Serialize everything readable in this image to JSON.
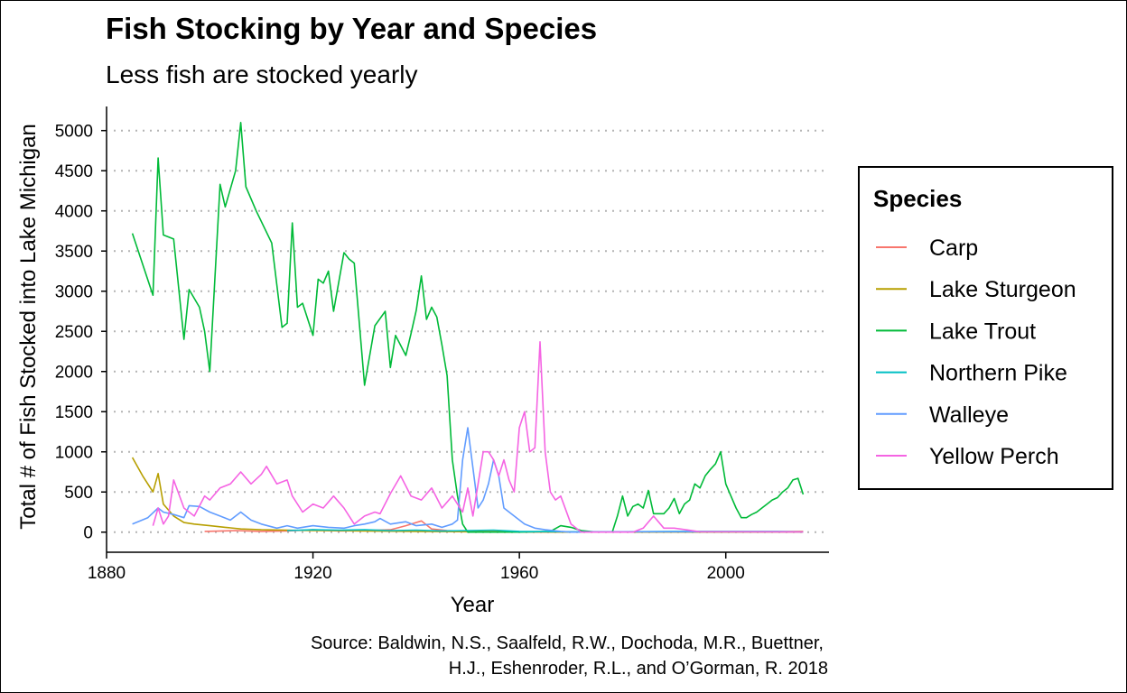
{
  "chart_data": {
    "type": "line",
    "title": "Fish Stocking by Year and Species",
    "subtitle": "Less fish are stocked yearly",
    "xlabel": "Year",
    "ylabel": "Total # of Fish Stocked into Lake Michigan",
    "xlim": [
      1880,
      2020
    ],
    "ylim": [
      -250,
      5300
    ],
    "xticks": [
      1880,
      1920,
      1960,
      2000
    ],
    "yticks": [
      0,
      500,
      1000,
      1500,
      2000,
      2500,
      3000,
      3500,
      4000,
      4500,
      5000
    ],
    "grid": "horizontal dotted",
    "legend": {
      "title": "Species",
      "position": "right"
    },
    "caption": [
      "Source: Baldwin, N.S., Saalfeld, R.W., Dochoda, M.R., Buettner,",
      "H.J., Eshenroder, R.L., and O’Gorman, R. 2018"
    ],
    "series": [
      {
        "name": "Carp",
        "color": "#F8766D",
        "x": [
          1899,
          1905,
          1910,
          1915,
          1920,
          1925,
          1930,
          1935,
          1938,
          1941,
          1943,
          1946,
          1950,
          1955,
          1960,
          1965,
          1970,
          1980,
          1990,
          2000,
          2010,
          2015
        ],
        "y": [
          10,
          20,
          10,
          15,
          30,
          15,
          20,
          30,
          80,
          140,
          40,
          20,
          10,
          10,
          5,
          0,
          0,
          0,
          0,
          0,
          0,
          0
        ]
      },
      {
        "name": "Lake Sturgeon",
        "color": "#B79F00",
        "x": [
          1885,
          1887,
          1889,
          1890,
          1891,
          1893,
          1895,
          1897,
          1900,
          1903,
          1906,
          1910,
          1920,
          1930,
          1940,
          1950,
          1960,
          1970,
          1990,
          2000,
          2010,
          2015
        ],
        "y": [
          930,
          700,
          500,
          730,
          350,
          200,
          120,
          100,
          80,
          60,
          40,
          30,
          20,
          15,
          10,
          5,
          5,
          0,
          0,
          0,
          5,
          10
        ]
      },
      {
        "name": "Lake Trout",
        "color": "#00BA38",
        "x": [
          1885,
          1889,
          1890,
          1891,
          1893,
          1895,
          1896,
          1898,
          1899,
          1900,
          1902,
          1903,
          1905,
          1906,
          1907,
          1909,
          1912,
          1914,
          1915,
          1916,
          1917,
          1918,
          1920,
          1921,
          1922,
          1923,
          1924,
          1926,
          1927,
          1928,
          1930,
          1932,
          1934,
          1935,
          1936,
          1938,
          1939,
          1940,
          1941,
          1942,
          1943,
          1944,
          1945,
          1946,
          1947,
          1948,
          1949,
          1950,
          1955,
          1960,
          1966,
          1968,
          1970,
          1972,
          1975,
          1978,
          1979,
          1980,
          1981,
          1982,
          1983,
          1984,
          1985,
          1986,
          1988,
          1989,
          1990,
          1991,
          1992,
          1993,
          1994,
          1995,
          1996,
          1997,
          1998,
          1999,
          2000,
          2001,
          2002,
          2003,
          2004,
          2005,
          2006,
          2007,
          2008,
          2009,
          2010,
          2011,
          2012,
          2013,
          2014,
          2015
        ],
        "y": [
          3720,
          2950,
          4660,
          3700,
          3650,
          2400,
          3020,
          2800,
          2500,
          2000,
          4330,
          4050,
          4500,
          5100,
          4300,
          4000,
          3600,
          2550,
          2600,
          3850,
          2800,
          2850,
          2450,
          3150,
          3100,
          3250,
          2750,
          3480,
          3400,
          3350,
          1830,
          2570,
          2750,
          2050,
          2450,
          2200,
          2470,
          2760,
          3190,
          2650,
          2800,
          2680,
          2330,
          1950,
          900,
          450,
          100,
          0,
          0,
          0,
          10,
          80,
          60,
          20,
          0,
          0,
          200,
          450,
          200,
          320,
          350,
          300,
          520,
          230,
          230,
          300,
          420,
          230,
          350,
          400,
          600,
          550,
          700,
          780,
          850,
          1000,
          600,
          450,
          300,
          180,
          180,
          220,
          250,
          300,
          350,
          400,
          430,
          500,
          550,
          650,
          670,
          470
        ]
      },
      {
        "name": "Northern Pike",
        "color": "#00BFC4",
        "x": [
          1915,
          1920,
          1925,
          1930,
          1935,
          1940,
          1945,
          1950,
          1955,
          1960,
          1970,
          1980,
          1990,
          2000,
          2010,
          2015
        ],
        "y": [
          20,
          30,
          25,
          30,
          20,
          25,
          15,
          20,
          25,
          10,
          5,
          5,
          10,
          10,
          10,
          5
        ]
      },
      {
        "name": "Walleye",
        "color": "#619CFF",
        "x": [
          1885,
          1888,
          1890,
          1891,
          1893,
          1895,
          1896,
          1898,
          1900,
          1902,
          1904,
          1906,
          1908,
          1910,
          1913,
          1915,
          1917,
          1920,
          1923,
          1926,
          1928,
          1930,
          1932,
          1933,
          1935,
          1938,
          1940,
          1943,
          1945,
          1947,
          1948,
          1949,
          1950,
          1951,
          1952,
          1953,
          1954,
          1955,
          1956,
          1957,
          1959,
          1961,
          1963,
          1965,
          1968,
          1970,
          1980,
          1990,
          2000,
          2010,
          2015
        ],
        "y": [
          100,
          180,
          300,
          250,
          220,
          180,
          330,
          320,
          250,
          200,
          150,
          250,
          150,
          100,
          50,
          80,
          50,
          80,
          60,
          50,
          80,
          100,
          130,
          170,
          100,
          130,
          80,
          100,
          60,
          100,
          150,
          900,
          1300,
          800,
          300,
          400,
          600,
          900,
          700,
          300,
          200,
          100,
          50,
          30,
          10,
          0,
          5,
          5,
          5,
          5,
          5
        ]
      },
      {
        "name": "Yellow Perch",
        "color": "#F564E3",
        "x": [
          1889,
          1890,
          1891,
          1892,
          1893,
          1895,
          1897,
          1899,
          1900,
          1902,
          1904,
          1906,
          1908,
          1910,
          1911,
          1913,
          1915,
          1916,
          1918,
          1920,
          1922,
          1924,
          1926,
          1928,
          1930,
          1932,
          1933,
          1935,
          1937,
          1939,
          1941,
          1943,
          1945,
          1947,
          1949,
          1950,
          1951,
          1953,
          1954,
          1955,
          1956,
          1957,
          1958,
          1959,
          1960,
          1961,
          1962,
          1963,
          1964,
          1965,
          1966,
          1967,
          1968,
          1970,
          1972,
          1975,
          1980,
          1982,
          1984,
          1986,
          1988,
          1990,
          1995,
          2000,
          2010,
          2015
        ],
        "y": [
          80,
          300,
          100,
          200,
          650,
          300,
          200,
          450,
          400,
          550,
          600,
          750,
          600,
          720,
          820,
          600,
          650,
          450,
          250,
          350,
          300,
          450,
          300,
          100,
          200,
          250,
          230,
          480,
          700,
          450,
          400,
          550,
          300,
          450,
          250,
          550,
          200,
          1000,
          1000,
          900,
          700,
          900,
          650,
          500,
          1300,
          1500,
          1000,
          1050,
          2370,
          1000,
          500,
          400,
          450,
          100,
          0,
          0,
          0,
          0,
          50,
          200,
          50,
          50,
          5,
          5,
          5,
          5
        ]
      }
    ]
  }
}
